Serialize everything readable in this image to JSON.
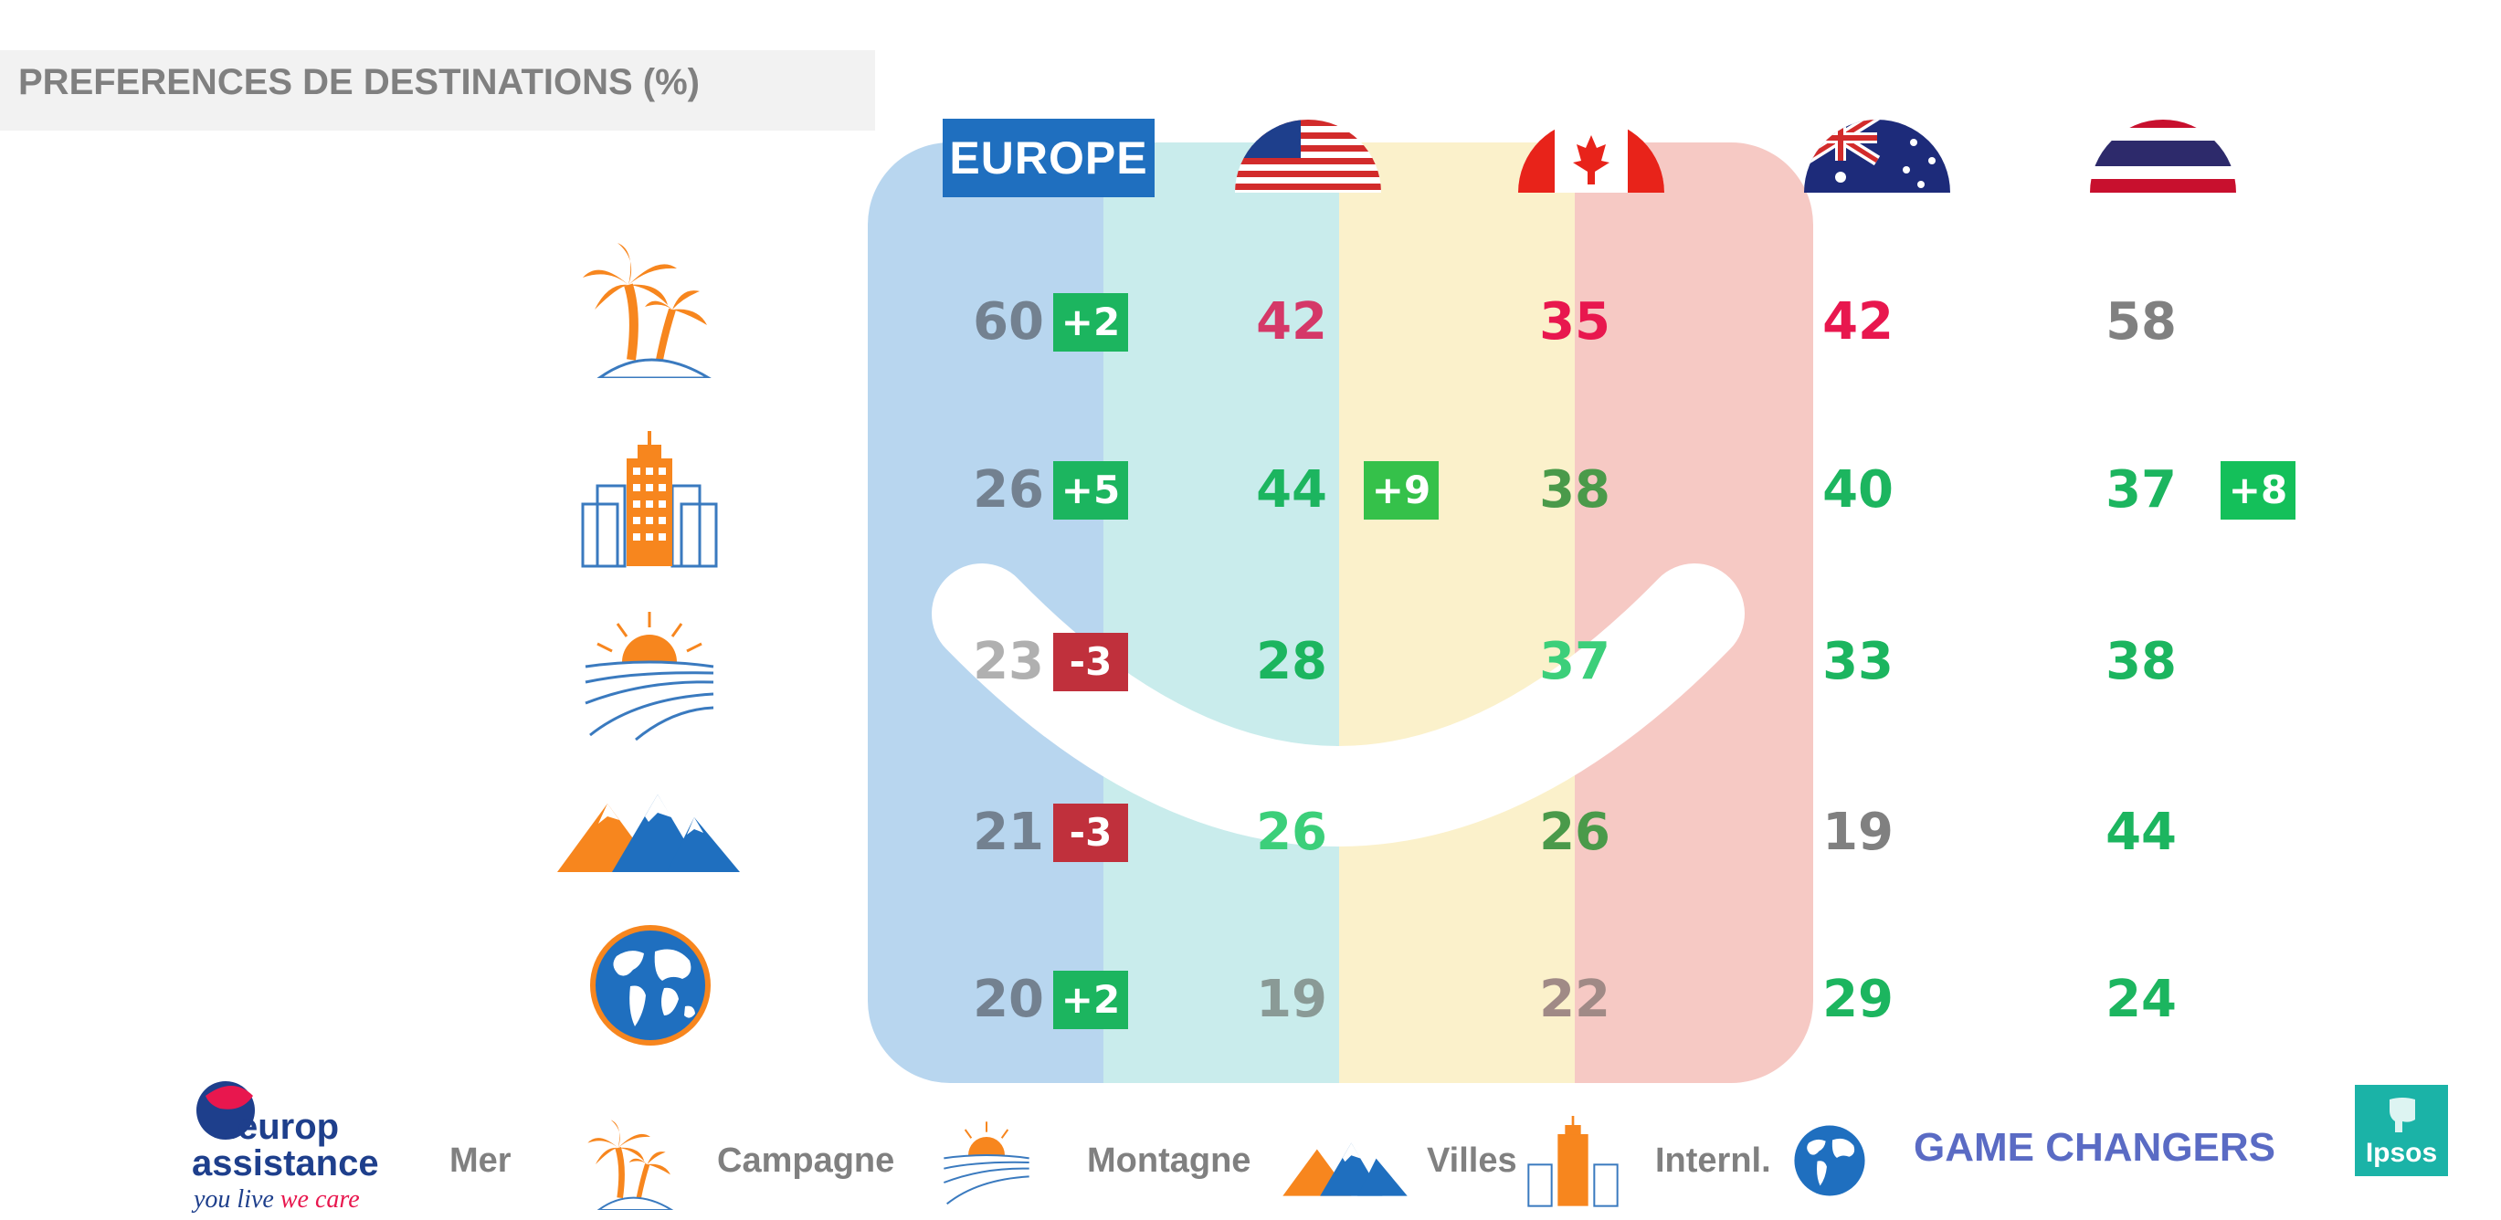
{
  "title": "PREFERENCES DE DESTINATIONS (%)",
  "columns": [
    {
      "key": "europe",
      "label": "EUROPE",
      "flag": "eu-badge"
    },
    {
      "key": "usa",
      "label": "",
      "flag": "usa-flag"
    },
    {
      "key": "canada",
      "label": "",
      "flag": "canada-flag"
    },
    {
      "key": "australia",
      "label": "",
      "flag": "australia-flag"
    },
    {
      "key": "thailand",
      "label": "",
      "flag": "thailand-flag"
    }
  ],
  "rows": [
    {
      "icon": "palm-tree-icon",
      "cells": [
        {
          "value": "60",
          "color": "#738190",
          "delta": "+2",
          "delta_color": "#1cb55f"
        },
        {
          "value": "42",
          "color": "#d53868",
          "delta": "",
          "delta_color": ""
        },
        {
          "value": "35",
          "color": "#e8174e",
          "delta": "",
          "delta_color": ""
        },
        {
          "value": "42",
          "color": "#e8174e",
          "delta": "",
          "delta_color": ""
        },
        {
          "value": "58",
          "color": "#808080",
          "delta": "",
          "delta_color": ""
        }
      ]
    },
    {
      "icon": "city-buildings-icon",
      "cells": [
        {
          "value": "26",
          "color": "#738190",
          "delta": "+5",
          "delta_color": "#1cb55f"
        },
        {
          "value": "44",
          "color": "#1cb55f",
          "delta": "+9",
          "delta_color": "#35c14a"
        },
        {
          "value": "38",
          "color": "#4a9a4a",
          "delta": "",
          "delta_color": ""
        },
        {
          "value": "40",
          "color": "#1cb55f",
          "delta": "",
          "delta_color": ""
        },
        {
          "value": "37",
          "color": "#1cb55f",
          "delta": "+8",
          "delta_color": "#14c05a"
        }
      ]
    },
    {
      "icon": "countryside-sunrise-icon",
      "cells": [
        {
          "value": "23",
          "color": "#b0b0b0",
          "delta": "-3",
          "delta_color": "#c0303c"
        },
        {
          "value": "28",
          "color": "#1cb55f",
          "delta": "",
          "delta_color": ""
        },
        {
          "value": "37",
          "color": "#3ccf7a",
          "delta": "",
          "delta_color": ""
        },
        {
          "value": "33",
          "color": "#1cb55f",
          "delta": "",
          "delta_color": ""
        },
        {
          "value": "38",
          "color": "#1cb55f",
          "delta": "",
          "delta_color": ""
        }
      ]
    },
    {
      "icon": "mountain-icon",
      "cells": [
        {
          "value": "21",
          "color": "#738190",
          "delta": "-3",
          "delta_color": "#c0303c"
        },
        {
          "value": "26",
          "color": "#3ccf7a",
          "delta": "",
          "delta_color": ""
        },
        {
          "value": "26",
          "color": "#4a9a4a",
          "delta": "",
          "delta_color": ""
        },
        {
          "value": "19",
          "color": "#808080",
          "delta": "",
          "delta_color": ""
        },
        {
          "value": "44",
          "color": "#1cb55f",
          "delta": "",
          "delta_color": ""
        }
      ]
    },
    {
      "icon": "globe-icon",
      "cells": [
        {
          "value": "20",
          "color": "#738190",
          "delta": "+2",
          "delta_color": "#1cb55f"
        },
        {
          "value": "19",
          "color": "#8a9a96",
          "delta": "",
          "delta_color": ""
        },
        {
          "value": "22",
          "color": "#a08a86",
          "delta": "",
          "delta_color": ""
        },
        {
          "value": "29",
          "color": "#1cb55f",
          "delta": "",
          "delta_color": ""
        },
        {
          "value": "24",
          "color": "#1cb55f",
          "delta": "",
          "delta_color": ""
        }
      ]
    }
  ],
  "legend": [
    {
      "label": "Mer",
      "icon": "palm-tree-icon"
    },
    {
      "label": "Campagne",
      "icon": "countryside-sunrise-icon"
    },
    {
      "label": "Montagne",
      "icon": "mountain-icon"
    },
    {
      "label": "Villes",
      "icon": "city-buildings-icon"
    },
    {
      "label": "Internl.",
      "icon": "globe-icon"
    }
  ],
  "footer": {
    "europ_assistance_logo": {
      "line1": "europ",
      "line2": "assistance",
      "tagline_a": "you live",
      "tagline_b": "we care"
    },
    "game_changers": "GAME CHANGERS",
    "ipsos": "Ipsos"
  },
  "colors": {
    "accent_orange": "#f7861e",
    "accent_blue": "#1f6fbf",
    "panel_blue": "#b8d6ef",
    "panel_teal": "#c9ecec",
    "panel_yellow": "#fbf1cb",
    "panel_red": "#f6c9c4"
  }
}
